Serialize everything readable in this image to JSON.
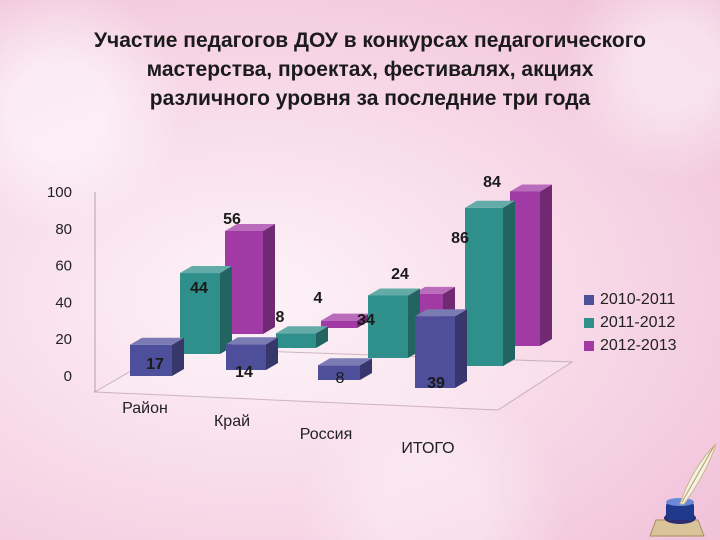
{
  "title_lines": [
    "Участие педагогов ДОУ в конкурсах педагогического",
    "мастерства, проектах, фестивалях, акциях",
    "различного уровня за последние три года"
  ],
  "chart_data": {
    "type": "bar",
    "categories": [
      "Район",
      "Край",
      "Россия",
      "ИТОГО"
    ],
    "series": [
      {
        "name": "2010-2011",
        "values": [
          17,
          14,
          8,
          39
        ],
        "color": "#4e4f9a"
      },
      {
        "name": "2011-2012",
        "values": [
          44,
          8,
          34,
          86
        ],
        "color": "#2f8f8a"
      },
      {
        "name": "2012-2013",
        "values": [
          56,
          4,
          24,
          84
        ],
        "color": "#a23aa6"
      }
    ],
    "yticks": [
      "0",
      "20",
      "40",
      "60",
      "80",
      "100"
    ],
    "ylim": [
      0,
      100
    ],
    "legend_position": "right",
    "grid": false
  }
}
